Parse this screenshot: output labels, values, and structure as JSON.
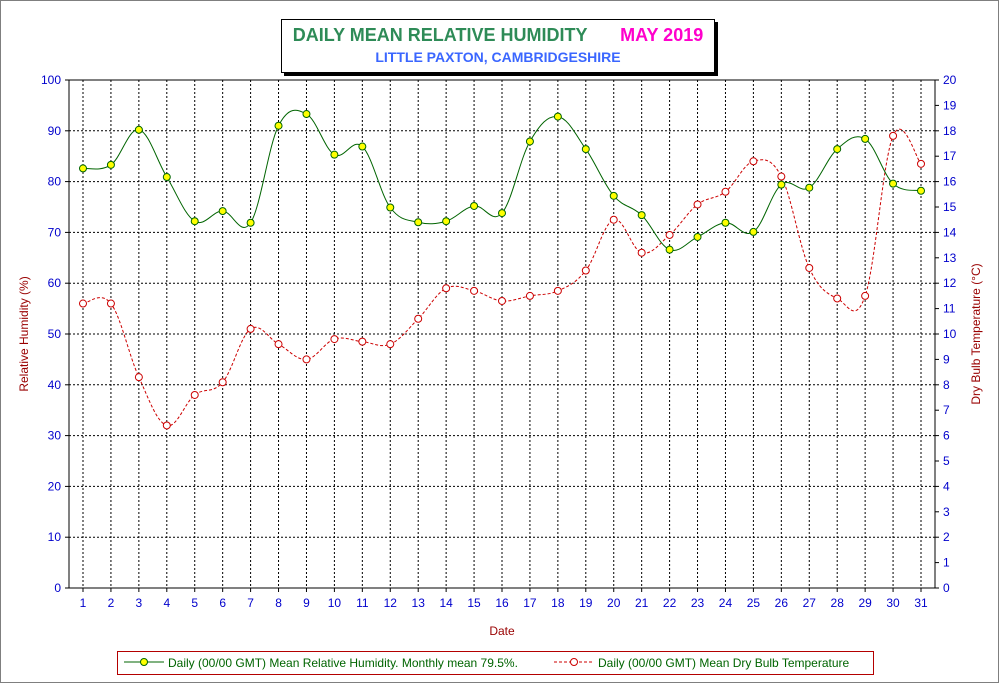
{
  "title": {
    "main": "DAILY MEAN RELATIVE HUMIDITY",
    "month": "MAY 2019",
    "subtitle": "LITTLE PAXTON, CAMBRIDGESHIRE"
  },
  "colors": {
    "humidity_line": "#006400",
    "humidity_marker": "#ffff00",
    "temperature_line": "#cc0000",
    "axis_text": "#0000cc",
    "axis_label": "#990000",
    "grid": "#000000"
  },
  "chart_data": {
    "type": "line",
    "xlabel": "Date",
    "ylabel_left": "Relative Humidity (%)",
    "ylabel_right": "Dry Bulb Temperature (°C)",
    "x": [
      1,
      2,
      3,
      4,
      5,
      6,
      7,
      8,
      9,
      10,
      11,
      12,
      13,
      14,
      15,
      16,
      17,
      18,
      19,
      20,
      21,
      22,
      23,
      24,
      25,
      26,
      27,
      28,
      29,
      30,
      31
    ],
    "ylim_left": [
      0,
      100
    ],
    "yticks_left": [
      0,
      10,
      20,
      30,
      40,
      50,
      60,
      70,
      80,
      90,
      100
    ],
    "ylim_right": [
      0,
      20
    ],
    "yticks_right": [
      0,
      1,
      2,
      3,
      4,
      5,
      6,
      7,
      8,
      9,
      10,
      11,
      12,
      13,
      14,
      15,
      16,
      17,
      18,
      19,
      20
    ],
    "grid": true,
    "legend_position": "bottom",
    "series": [
      {
        "name": "Daily (00/00 GMT) Mean Relative Humidity. Monthly mean 79.5%.",
        "axis": "left",
        "style": "solid",
        "values": [
          82.6,
          83.3,
          90.2,
          80.9,
          72.2,
          74.2,
          71.9,
          91.0,
          93.3,
          85.3,
          86.9,
          74.9,
          72.0,
          72.2,
          75.2,
          73.8,
          87.9,
          92.8,
          86.4,
          77.2,
          73.4,
          66.6,
          69.1,
          71.9,
          70.1,
          79.4,
          78.8,
          86.4,
          88.4,
          79.6,
          78.2
        ]
      },
      {
        "name": "Daily (00/00 GMT) Mean Dry Bulb Temperature",
        "axis": "right",
        "style": "dashed",
        "values": [
          11.2,
          11.2,
          8.3,
          6.4,
          7.6,
          8.1,
          10.2,
          9.6,
          9.0,
          9.8,
          9.7,
          9.6,
          10.6,
          11.8,
          11.7,
          11.3,
          11.5,
          11.7,
          12.5,
          14.5,
          13.2,
          13.9,
          15.1,
          15.6,
          16.8,
          16.2,
          12.6,
          11.4,
          11.5,
          17.8,
          16.7
        ]
      }
    ]
  }
}
